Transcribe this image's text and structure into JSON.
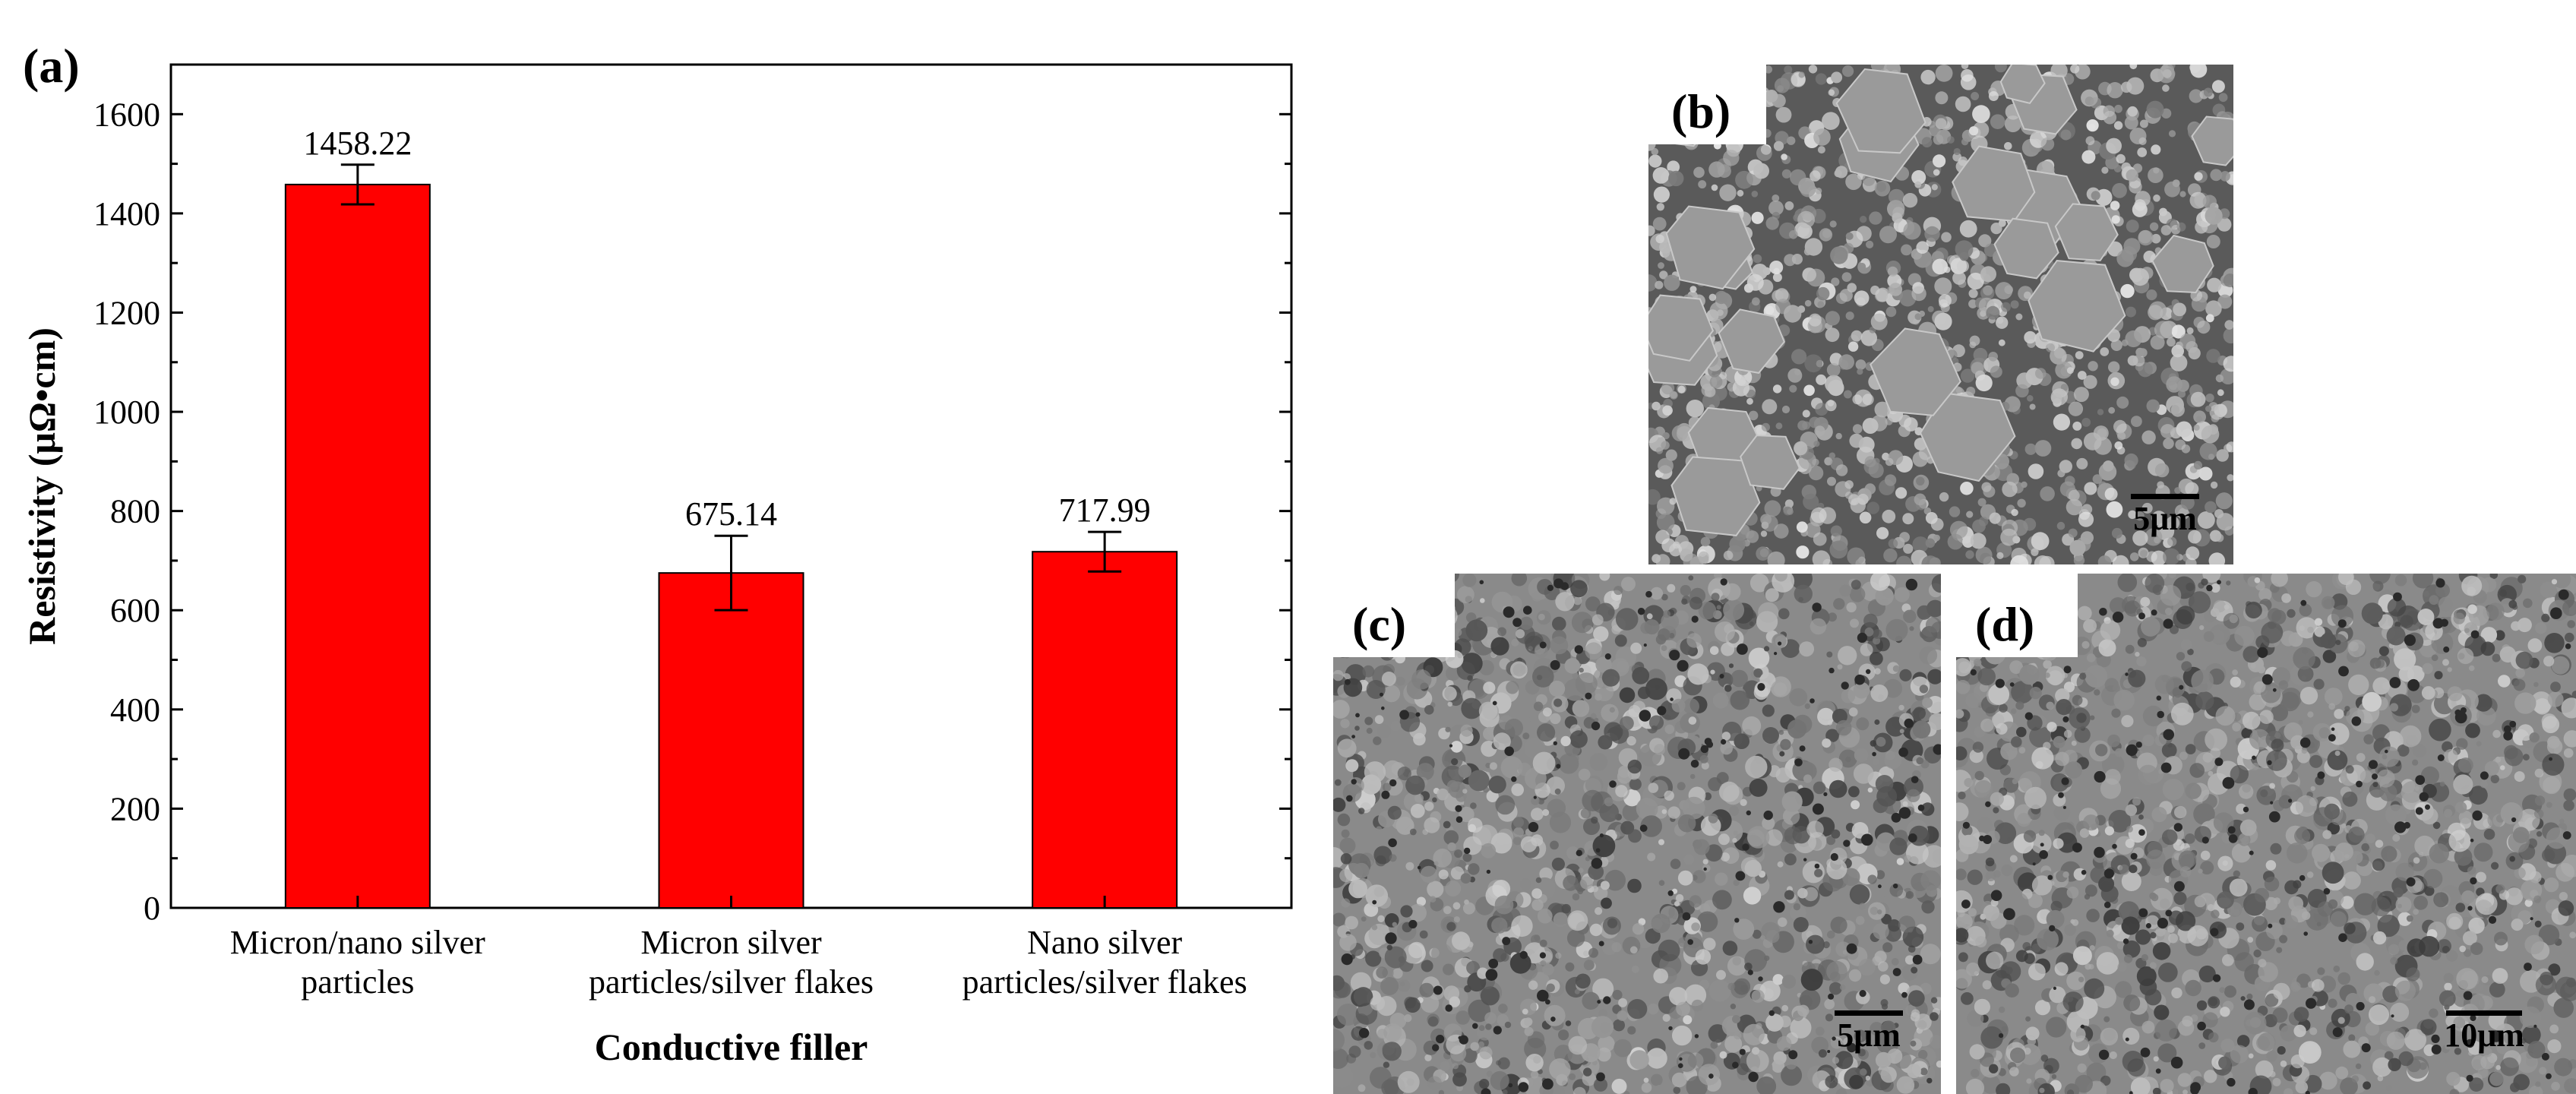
{
  "chart_data": {
    "type": "bar",
    "panel_label": "(a)",
    "categories": [
      [
        "Micron/nano silver",
        "particles"
      ],
      [
        "Micron silver",
        "particles/silver flakes"
      ],
      [
        "Nano silver",
        "particles/silver flakes"
      ]
    ],
    "values": [
      1458.22,
      675.14,
      717.99
    ],
    "value_labels": [
      "1458.22",
      "675.14",
      "717.99"
    ],
    "errors": [
      40,
      75,
      40
    ],
    "xlabel": "Conductive filler",
    "ylabel": "Resistivity (μΩ•cm)",
    "ylim": [
      0,
      1700
    ],
    "yticks": [
      0,
      200,
      400,
      600,
      800,
      1000,
      1200,
      1400,
      1600
    ],
    "bar_color": "#ff0000",
    "grid": false
  },
  "sem_images": [
    {
      "label": "(b)",
      "scale": "5μm"
    },
    {
      "label": "(c)",
      "scale": "5μm"
    },
    {
      "label": "(d)",
      "scale": "10μm"
    }
  ]
}
